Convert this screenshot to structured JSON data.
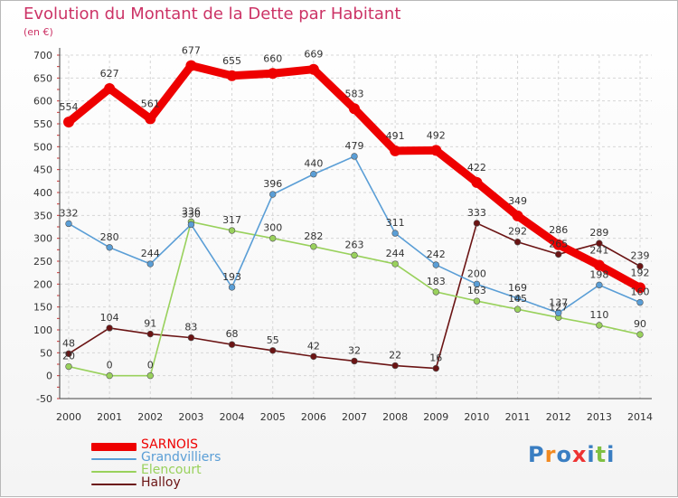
{
  "title": "Evolution du Montant de la Dette par Habitant",
  "subtitle": "(en €)",
  "logo_text": "Proxiti",
  "chart_data": {
    "type": "line",
    "x": [
      "2000",
      "2001",
      "2002",
      "2003",
      "2004",
      "2005",
      "2006",
      "2007",
      "2008",
      "2009",
      "2010",
      "2011",
      "2012",
      "2013",
      "2014"
    ],
    "ylim": [
      -50,
      700
    ],
    "yticks": [
      -50,
      0,
      50,
      100,
      150,
      200,
      250,
      300,
      350,
      400,
      450,
      500,
      550,
      600,
      650,
      700
    ],
    "grid": true,
    "legend_position": "bottom-left",
    "series": [
      {
        "name": "Halloy",
        "color": "#6b1414",
        "highlight": false,
        "values": [
          48,
          104,
          91,
          83,
          68,
          55,
          42,
          32,
          22,
          16,
          333,
          292,
          265,
          289,
          239
        ]
      },
      {
        "name": "Elencourt",
        "color": "#99d15c",
        "highlight": false,
        "values": [
          20,
          0,
          0,
          336,
          317,
          300,
          282,
          263,
          244,
          183,
          163,
          145,
          127,
          110,
          90
        ]
      },
      {
        "name": "Grandvilliers",
        "color": "#5a9ed6",
        "highlight": false,
        "values": [
          332,
          280,
          244,
          330,
          193,
          396,
          440,
          479,
          311,
          242,
          200,
          169,
          137,
          198,
          160
        ]
      },
      {
        "name": "SARNOIS",
        "color": "#ee0000",
        "highlight": true,
        "values": [
          554,
          627,
          561,
          677,
          655,
          660,
          669,
          583,
          491,
          492,
          422,
          349,
          286,
          241,
          192
        ]
      }
    ],
    "data_labels": {
      "SARNOIS": [
        "554",
        "627",
        "561",
        "677",
        "655",
        "660",
        "669",
        "583",
        "491",
        "492",
        "422",
        "349",
        "286",
        "241",
        "192"
      ],
      "Grandvilliers": [
        "332",
        "280",
        "244",
        "330",
        "193",
        "396",
        "440",
        "479",
        "311",
        "242",
        "200",
        "169",
        "137",
        "198",
        "160"
      ],
      "Elencourt": [
        "20",
        "0",
        "0",
        "336",
        "317",
        "300",
        "282",
        "263",
        "244",
        "183",
        "163",
        "145",
        "127",
        "110",
        "90"
      ],
      "Halloy": [
        "48",
        "104",
        "91",
        "83",
        "68",
        "55",
        "42",
        "32",
        "22",
        "16",
        "333",
        "292",
        "265",
        "289",
        "239"
      ]
    }
  },
  "legend": [
    {
      "label": "SARNOIS",
      "color": "#ee0000",
      "thick": true
    },
    {
      "label": "Grandvilliers",
      "color": "#5a9ed6",
      "thick": false
    },
    {
      "label": "Elencourt",
      "color": "#99d15c",
      "thick": false
    },
    {
      "label": "Halloy",
      "color": "#6b1414",
      "thick": false
    }
  ]
}
